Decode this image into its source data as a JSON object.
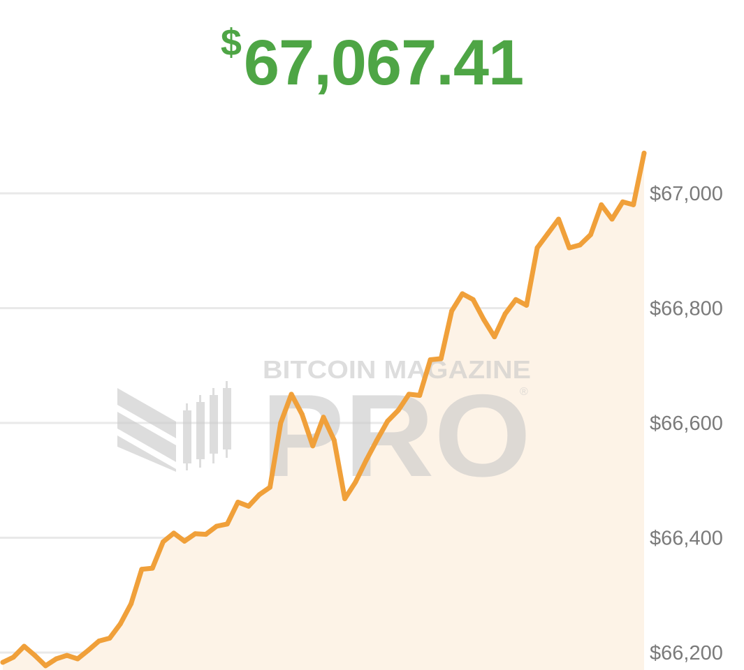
{
  "price": {
    "currency_symbol": "$",
    "value": "67,067.41",
    "color": "#4ea545"
  },
  "watermark": {
    "brand": "BITCOIN MAGAZINE",
    "sub": "PRO",
    "mark": "®"
  },
  "colors": {
    "line": "#f0a03a",
    "area": "#fdf3e7",
    "grid": "#e9e9e9",
    "tick": "#7a7a7a",
    "watermark": "#c8c8c8"
  },
  "chart_data": {
    "type": "area",
    "title": "",
    "xlabel": "",
    "ylabel": "",
    "grid": true,
    "y_axis_position": "right",
    "ylim": [
      66177,
      67080
    ],
    "y_ticks": [
      67000,
      66800,
      66600,
      66400,
      66200
    ],
    "y_tick_labels": [
      "$67,000",
      "$66,800",
      "$66,600",
      "$66,400",
      "$66,200"
    ],
    "series": [
      {
        "values": [
          66183,
          66192,
          66211,
          66195,
          66177,
          66189,
          66195,
          66189,
          66204,
          66220,
          66225,
          66250,
          66285,
          66345,
          66347,
          66393,
          66408,
          66394,
          66407,
          66406,
          66420,
          66424,
          66462,
          66455,
          66475,
          66488,
          66600,
          66650,
          66615,
          66560,
          66610,
          66570,
          66468,
          66497,
          66535,
          66570,
          66603,
          66622,
          66650,
          66648,
          66710,
          66712,
          66795,
          66825,
          66815,
          66780,
          66750,
          66790,
          66815,
          66805,
          66905,
          66930,
          66955,
          66905,
          66910,
          66928,
          66980,
          66955,
          66985,
          66980,
          67070
        ]
      }
    ]
  }
}
